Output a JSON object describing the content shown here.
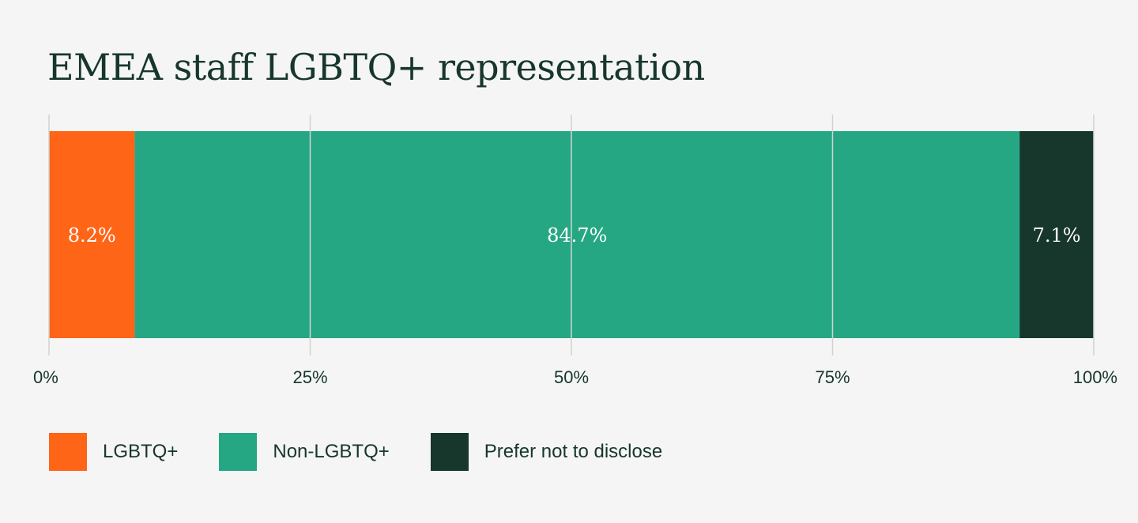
{
  "chart_data": {
    "type": "bar",
    "orientation": "horizontal-stacked",
    "title": "EMEA staff LGBTQ+ representation",
    "xlim": [
      0,
      100
    ],
    "x_ticks": [
      "0%",
      "25%",
      "50%",
      "75%",
      "100%"
    ],
    "x_tick_values": [
      0,
      25,
      50,
      75,
      100
    ],
    "grid": true,
    "legend_position": "bottom-left",
    "series": [
      {
        "name": "LGBTQ+",
        "value": 8.2,
        "label": "8.2%",
        "color": "#ff6517"
      },
      {
        "name": "Non-LGBTQ+",
        "value": 84.7,
        "label": "84.7%",
        "color": "#26a783"
      },
      {
        "name": "Prefer not to disclose",
        "value": 7.1,
        "label": "7.1%",
        "color": "#17362c"
      }
    ]
  }
}
